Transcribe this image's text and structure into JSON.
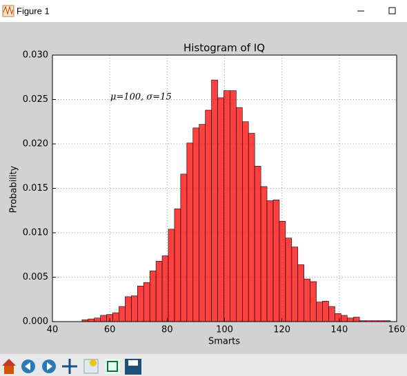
{
  "window": {
    "title": "Figure 1"
  },
  "chart_data": {
    "type": "histogram",
    "title": "Histogram of IQ",
    "x_label": "Smarts",
    "y_label": "Probability",
    "annotation": "μ=100,  σ=15",
    "color": "#ff0000",
    "edge_color": "#000000",
    "grid": true,
    "bins": [
      50.3,
      52.45,
      54.6,
      56.75,
      58.9,
      61.05,
      63.2,
      65.35,
      67.5,
      69.65,
      71.8,
      73.95,
      76.1,
      78.25,
      80.4,
      82.55,
      84.7,
      86.85,
      89,
      91.15,
      93.3,
      95.45,
      97.6,
      99.75,
      101.9,
      104.05,
      106.2,
      108.35,
      110.5,
      112.65,
      114.8,
      116.95,
      119.1,
      121.25,
      123.4,
      125.55,
      127.7,
      129.85,
      132,
      134.15,
      136.3,
      138.45,
      140.6,
      142.75,
      144.9,
      147.05,
      149.2,
      151.35,
      153.5,
      155.65,
      157.8
    ],
    "values": [
      0.0002,
      0.0003,
      0.0004,
      0.0007,
      0.0008,
      0.001,
      0.0017,
      0.0028,
      0.0029,
      0.004,
      0.0044,
      0.0057,
      0.0068,
      0.0074,
      0.0104,
      0.0127,
      0.0166,
      0.0201,
      0.0218,
      0.0222,
      0.0238,
      0.0272,
      0.0252,
      0.026,
      0.026,
      0.0241,
      0.0225,
      0.0212,
      0.0175,
      0.0152,
      0.0136,
      0.0137,
      0.0113,
      0.0094,
      0.0084,
      0.0064,
      0.0048,
      0.0045,
      0.0022,
      0.0023,
      0.0017,
      0.0009,
      0.0007,
      0.0004,
      0.0005,
      0.0001,
      0.0001,
      0.0001,
      0.0001,
      0.0001
    ],
    "xlim": [
      40,
      160
    ],
    "xticks": [
      40,
      60,
      80,
      100,
      120,
      140,
      160
    ],
    "ylim": [
      0,
      0.03
    ],
    "yticks": [
      {
        "value": 0,
        "label": "0.000"
      },
      {
        "value": 0.005,
        "label": "0.005"
      },
      {
        "value": 0.01,
        "label": "0.010"
      },
      {
        "value": 0.015,
        "label": "0.015"
      },
      {
        "value": 0.02,
        "label": "0.020"
      },
      {
        "value": 0.025,
        "label": "0.025"
      },
      {
        "value": 0.03,
        "label": "0.030"
      }
    ]
  }
}
